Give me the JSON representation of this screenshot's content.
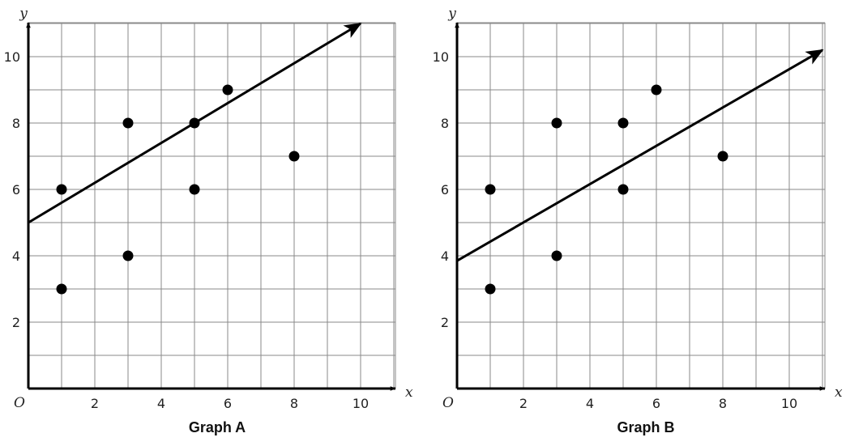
{
  "chart_data": [
    {
      "type": "scatter",
      "title": "Graph A",
      "xlabel": "x",
      "ylabel": "y",
      "origin_label": "O",
      "xlim": [
        0,
        11
      ],
      "ylim": [
        0,
        11
      ],
      "xticks": [
        2,
        4,
        6,
        8,
        10
      ],
      "yticks": [
        2,
        4,
        6,
        8,
        10
      ],
      "grid": true,
      "points": [
        [
          1,
          6
        ],
        [
          1,
          3
        ],
        [
          3,
          8
        ],
        [
          3,
          4
        ],
        [
          5,
          8
        ],
        [
          5,
          6
        ],
        [
          6,
          9
        ],
        [
          8,
          7
        ]
      ],
      "line": {
        "x": [
          0,
          10
        ],
        "y": [
          5,
          11
        ],
        "arrow": true
      }
    },
    {
      "type": "scatter",
      "title": "Graph B",
      "xlabel": "x",
      "ylabel": "y",
      "origin_label": "O",
      "xlim": [
        0,
        11
      ],
      "ylim": [
        0,
        11
      ],
      "xticks": [
        2,
        4,
        6,
        8,
        10
      ],
      "yticks": [
        2,
        4,
        6,
        8,
        10
      ],
      "grid": true,
      "points": [
        [
          1,
          6
        ],
        [
          1,
          3
        ],
        [
          3,
          8
        ],
        [
          3,
          4
        ],
        [
          5,
          8
        ],
        [
          5,
          6
        ],
        [
          6,
          9
        ],
        [
          8,
          7
        ]
      ],
      "line": {
        "x": [
          0,
          11
        ],
        "y": [
          3.85,
          10.2
        ],
        "arrow": true
      }
    }
  ]
}
